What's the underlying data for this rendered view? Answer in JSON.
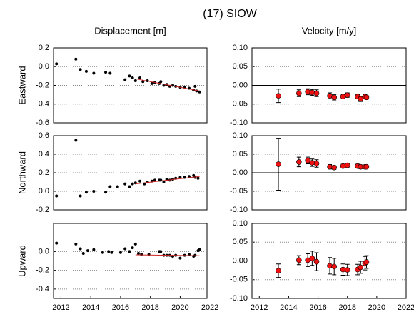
{
  "title": "(17) SIOW",
  "chart_data": [
    {
      "type": "scatter",
      "title": "Displacement [m]",
      "ylabel": "Eastward",
      "xlim": [
        2011.5,
        2021.8
      ],
      "ylim": [
        -0.6,
        0.2
      ],
      "yticks": [
        0.2,
        {
          "value": 0,
          "label": "0.0"
        },
        -0.2,
        -0.4,
        -0.6
      ],
      "grid": true,
      "series": [
        {
          "style": "points",
          "color": "#000000",
          "x": [
            2011.7,
            2013.0,
            2013.3,
            2013.7,
            2014.2,
            2015.0,
            2015.3,
            2016.3,
            2016.6,
            2016.8,
            2017.0,
            2017.3,
            2017.5,
            2017.8,
            2018.1,
            2018.3,
            2018.6,
            2018.7,
            2018.9,
            2019.1,
            2019.3,
            2019.5,
            2019.7,
            2020.0,
            2020.3,
            2020.6,
            2020.9,
            2021.0,
            2021.1,
            2021.3
          ],
          "values": [
            0.03,
            0.08,
            -0.03,
            -0.05,
            -0.07,
            -0.06,
            -0.07,
            -0.14,
            -0.1,
            -0.12,
            -0.15,
            -0.12,
            -0.16,
            -0.15,
            -0.18,
            -0.17,
            -0.18,
            -0.16,
            -0.2,
            -0.19,
            -0.21,
            -0.2,
            -0.21,
            -0.22,
            -0.22,
            -0.23,
            -0.25,
            -0.21,
            -0.26,
            -0.27
          ]
        },
        {
          "style": "line",
          "color": "#cc2222",
          "x": [
            2017.0,
            2021.3
          ],
          "values": [
            -0.13,
            -0.26
          ]
        }
      ]
    },
    {
      "type": "scatter",
      "title": "Velocity [m/y]",
      "xlim": [
        2011.5,
        2022
      ],
      "ylim": [
        -0.1,
        0.1
      ],
      "yticks": [
        {
          "value": 0.1,
          "label": "0.10"
        },
        {
          "value": 0.05,
          "label": "0.05"
        },
        {
          "value": 0,
          "label": "0.00"
        },
        {
          "value": -0.05,
          "label": "-0.05"
        },
        {
          "value": -0.1,
          "label": "-0.10"
        }
      ],
      "grid": true,
      "zero_line": true,
      "series": [
        {
          "style": "errorbar",
          "color": "#ee1111",
          "x": [
            2013.3,
            2014.7,
            2015.3,
            2015.6,
            2015.9,
            2016.8,
            2017.1,
            2017.7,
            2018.0,
            2018.7,
            2018.9,
            2019.2,
            2019.3
          ],
          "values": [
            -0.028,
            -0.021,
            -0.017,
            -0.019,
            -0.021,
            -0.028,
            -0.032,
            -0.03,
            -0.026,
            -0.03,
            -0.036,
            -0.03,
            -0.032
          ],
          "errors": [
            0.018,
            0.009,
            0.008,
            0.008,
            0.009,
            0.008,
            0.007,
            0.006,
            0.006,
            0.006,
            0.007,
            0.005,
            0.005
          ]
        }
      ]
    },
    {
      "type": "scatter",
      "ylabel": "Northward",
      "xlim": [
        2011.5,
        2021.8
      ],
      "ylim": [
        -0.2,
        0.6
      ],
      "yticks": [
        0.6,
        0.4,
        0.2,
        {
          "value": 0,
          "label": "0.0"
        },
        -0.2
      ],
      "grid": true,
      "series": [
        {
          "style": "points",
          "color": "#000000",
          "x": [
            2011.7,
            2013.0,
            2013.3,
            2013.7,
            2014.2,
            2015.0,
            2015.3,
            2015.8,
            2016.3,
            2016.6,
            2016.8,
            2017.0,
            2017.3,
            2017.6,
            2017.8,
            2018.1,
            2018.3,
            2018.6,
            2018.7,
            2018.9,
            2019.1,
            2019.3,
            2019.5,
            2019.7,
            2020.0,
            2020.3,
            2020.6,
            2020.9,
            2021.0,
            2021.2
          ],
          "values": [
            -0.05,
            0.55,
            -0.05,
            -0.01,
            0.0,
            -0.01,
            0.05,
            0.05,
            0.08,
            0.05,
            0.08,
            0.09,
            0.11,
            0.08,
            0.1,
            0.11,
            0.12,
            0.12,
            0.12,
            0.1,
            0.13,
            0.12,
            0.13,
            0.14,
            0.15,
            0.15,
            0.16,
            0.17,
            0.15,
            0.14
          ]
        },
        {
          "style": "line",
          "color": "#cc2222",
          "x": [
            2017.0,
            2021.3
          ],
          "values": [
            0.08,
            0.16
          ]
        }
      ]
    },
    {
      "type": "scatter",
      "xlim": [
        2011.5,
        2022
      ],
      "ylim": [
        -0.1,
        0.1
      ],
      "yticks": [
        {
          "value": 0.1,
          "label": "0.10"
        },
        {
          "value": 0.05,
          "label": "0.05"
        },
        {
          "value": 0,
          "label": "0.00"
        },
        {
          "value": -0.05,
          "label": "-0.05"
        },
        {
          "value": -0.1,
          "label": "-0.10"
        }
      ],
      "grid": true,
      "zero_line": true,
      "series": [
        {
          "style": "errorbar",
          "color": "#ee1111",
          "x": [
            2013.3,
            2014.7,
            2015.3,
            2015.6,
            2015.9,
            2016.8,
            2017.1,
            2017.7,
            2018.0,
            2018.7,
            2018.9,
            2019.2,
            2019.3
          ],
          "values": [
            0.023,
            0.029,
            0.033,
            0.027,
            0.025,
            0.016,
            0.014,
            0.018,
            0.02,
            0.018,
            0.016,
            0.016,
            0.016
          ],
          "errors": [
            0.07,
            0.013,
            0.009,
            0.01,
            0.01,
            0.006,
            0.005,
            0.005,
            0.005,
            0.005,
            0.005,
            0.004,
            0.004
          ]
        }
      ]
    },
    {
      "type": "scatter",
      "ylabel": "Upward",
      "xlim": [
        2011.5,
        2021.8
      ],
      "ylim": [
        -0.5,
        0.3
      ],
      "yticks": [
        {
          "value": 0,
          "label": "0.0"
        },
        -0.2,
        -0.4
      ],
      "xticks": [
        2012,
        2014,
        2016,
        2018,
        2020,
        2022
      ],
      "grid": true,
      "series": [
        {
          "style": "points",
          "color": "#000000",
          "x": [
            2011.7,
            2013.0,
            2013.3,
            2013.5,
            2013.8,
            2014.2,
            2014.8,
            2015.2,
            2015.4,
            2016.0,
            2016.3,
            2016.6,
            2016.8,
            2017.0,
            2017.2,
            2017.4,
            2017.9,
            2018.6,
            2018.7,
            2018.9,
            2019.1,
            2019.3,
            2019.5,
            2019.7,
            2020.0,
            2020.3,
            2020.6,
            2020.9,
            2021.0,
            2021.2,
            2021.3
          ],
          "values": [
            0.09,
            0.08,
            0.03,
            -0.02,
            0.01,
            0.02,
            -0.01,
            0.0,
            -0.01,
            -0.01,
            0.03,
            0.0,
            0.04,
            0.08,
            -0.02,
            -0.03,
            -0.03,
            0.0,
            0.0,
            -0.04,
            -0.04,
            -0.04,
            -0.05,
            -0.04,
            -0.07,
            -0.04,
            -0.03,
            -0.05,
            -0.04,
            0.01,
            0.02
          ]
        },
        {
          "style": "line",
          "color": "#cc2222",
          "x": [
            2017.0,
            2021.3
          ],
          "values": [
            -0.035,
            -0.045
          ]
        }
      ]
    },
    {
      "type": "scatter",
      "xlim": [
        2011.5,
        2022
      ],
      "ylim": [
        -0.1,
        0.1
      ],
      "yticks": [
        {
          "value": 0.1,
          "label": "0.10"
        },
        {
          "value": 0.05,
          "label": "0.05"
        },
        {
          "value": 0,
          "label": "0.00"
        },
        {
          "value": -0.05,
          "label": "-0.05"
        },
        {
          "value": -0.1,
          "label": "-0.10"
        }
      ],
      "xticks": [
        2012,
        2014,
        2016,
        2018,
        2020,
        2022
      ],
      "grid": true,
      "zero_line": true,
      "series": [
        {
          "style": "errorbar",
          "color": "#ee1111",
          "x": [
            2013.3,
            2014.7,
            2015.3,
            2015.6,
            2015.9,
            2016.8,
            2017.1,
            2017.7,
            2018.0,
            2018.7,
            2018.9,
            2019.2,
            2019.3
          ],
          "values": [
            -0.026,
            0.002,
            0.002,
            0.007,
            -0.002,
            -0.013,
            -0.015,
            -0.023,
            -0.024,
            -0.023,
            -0.017,
            -0.006,
            -0.003
          ],
          "errors": [
            0.018,
            0.012,
            0.017,
            0.019,
            0.024,
            0.022,
            0.022,
            0.015,
            0.015,
            0.014,
            0.016,
            0.018,
            0.017
          ]
        }
      ]
    }
  ]
}
